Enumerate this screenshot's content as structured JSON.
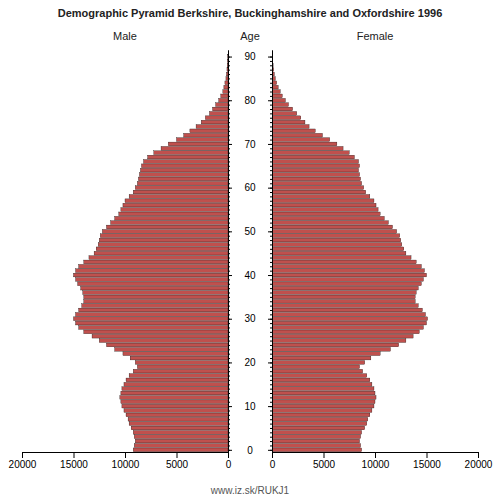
{
  "chart_data": {
    "type": "pyramid",
    "title": "Demographic Pyramid Berkshire, Buckinghamshire and Oxfordshire 1996",
    "ylabel": "Age",
    "annotations": [
      "www.iz.sk/RUKJ1"
    ],
    "orientation": "horizontal",
    "grid": false,
    "categories": [
      0,
      1,
      2,
      3,
      4,
      5,
      6,
      7,
      8,
      9,
      10,
      11,
      12,
      13,
      14,
      15,
      16,
      17,
      18,
      19,
      20,
      21,
      22,
      23,
      24,
      25,
      26,
      27,
      28,
      29,
      30,
      31,
      32,
      33,
      34,
      35,
      36,
      37,
      38,
      39,
      40,
      41,
      42,
      43,
      44,
      45,
      46,
      47,
      48,
      49,
      50,
      51,
      52,
      53,
      54,
      55,
      56,
      57,
      58,
      59,
      60,
      61,
      62,
      63,
      64,
      65,
      66,
      67,
      68,
      69,
      70,
      71,
      72,
      73,
      74,
      75,
      76,
      77,
      78,
      79,
      80,
      81,
      82,
      83,
      84,
      85,
      86,
      87,
      88,
      89,
      90
    ],
    "series": [
      {
        "name": "Male",
        "color": "#c0504d",
        "values": [
          9200,
          9100,
          9000,
          9100,
          9200,
          9400,
          9600,
          9700,
          9900,
          10100,
          10300,
          10400,
          10500,
          10400,
          10300,
          10100,
          9900,
          9600,
          9200,
          8800,
          9000,
          9500,
          10200,
          11000,
          11800,
          12500,
          13200,
          14000,
          14500,
          14800,
          15000,
          14800,
          14500,
          14200,
          14000,
          14000,
          14100,
          14300,
          14600,
          14800,
          15000,
          14800,
          14500,
          14000,
          13500,
          13000,
          12800,
          12600,
          12500,
          12400,
          12200,
          11800,
          11400,
          11000,
          10600,
          10400,
          10200,
          10000,
          9600,
          9200,
          9000,
          8800,
          8700,
          8600,
          8500,
          8400,
          8200,
          7800,
          7200,
          6500,
          5800,
          5000,
          4300,
          3700,
          3100,
          2600,
          2200,
          1800,
          1500,
          1200,
          900,
          700,
          500,
          400,
          300,
          200,
          150,
          100,
          70,
          50,
          30
        ]
      },
      {
        "name": "Female",
        "color": "#c0504d",
        "values": [
          8700,
          8600,
          8500,
          8600,
          8700,
          9000,
          9200,
          9300,
          9500,
          9700,
          9900,
          10000,
          10100,
          10000,
          9900,
          9700,
          9500,
          9200,
          8800,
          8500,
          9000,
          9600,
          10500,
          11500,
          12300,
          13000,
          13700,
          14300,
          14700,
          15000,
          15100,
          14900,
          14600,
          14200,
          13900,
          13900,
          14000,
          14200,
          14500,
          14700,
          15000,
          14800,
          14500,
          14000,
          13500,
          13000,
          12800,
          12600,
          12500,
          12400,
          12100,
          11700,
          11300,
          10900,
          10500,
          10300,
          10100,
          9900,
          9500,
          9100,
          8900,
          8700,
          8600,
          8500,
          8400,
          8500,
          8400,
          8000,
          7500,
          6900,
          6300,
          5600,
          4900,
          4200,
          3600,
          3200,
          2800,
          2400,
          2000,
          1600,
          1300,
          1000,
          800,
          600,
          450,
          320,
          230,
          160,
          110,
          70,
          40
        ]
      }
    ],
    "xlim": [
      0,
      20000
    ],
    "xticks": [
      0,
      5000,
      10000,
      15000,
      20000
    ],
    "ylim": [
      -0.5,
      91.5
    ],
    "yticks": [
      0,
      10,
      20,
      30,
      40,
      50,
      60,
      70,
      80,
      90
    ]
  }
}
